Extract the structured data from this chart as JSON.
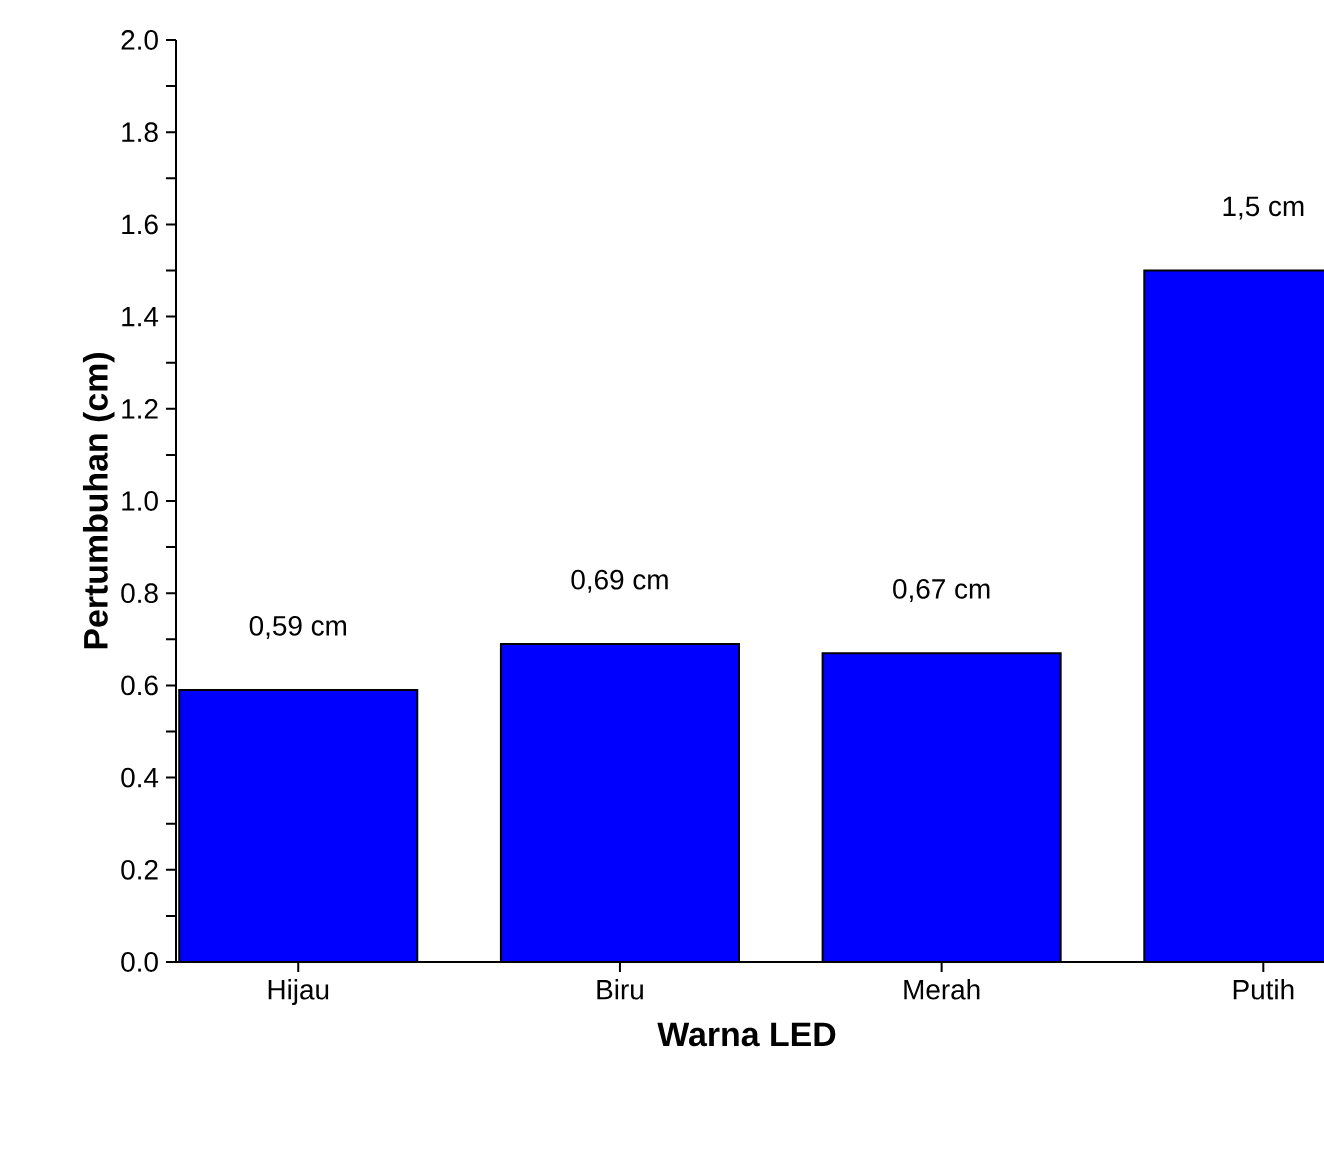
{
  "chart_data": {
    "type": "bar",
    "xlabel": "Warna LED",
    "ylabel": "Pertumbuhan (cm)",
    "categories": [
      "Hijau",
      "Biru",
      "Merah",
      "Putih"
    ],
    "values": [
      0.59,
      0.69,
      0.67,
      1.5
    ],
    "value_labels": [
      "0,59 cm",
      "0,69 cm",
      "0,67 cm",
      "1,5 cm"
    ],
    "color": "#0000ff",
    "ylim": [
      0,
      2.0
    ],
    "yticks": [
      {
        "value": 0,
        "label": "0.0"
      },
      {
        "value": 0.1,
        "label": null
      },
      {
        "value": 0.2,
        "label": "0.2"
      },
      {
        "value": 0.3,
        "label": null
      },
      {
        "value": 0.4,
        "label": "0.4"
      },
      {
        "value": 0.5,
        "label": null
      },
      {
        "value": 0.6,
        "label": "0.6"
      },
      {
        "value": 0.7,
        "label": null
      },
      {
        "value": 0.8,
        "label": "0.8"
      },
      {
        "value": 0.9,
        "label": null
      },
      {
        "value": 1.0,
        "label": "1.0"
      },
      {
        "value": 1.1,
        "label": null
      },
      {
        "value": 1.2,
        "label": "1.2"
      },
      {
        "value": 1.3,
        "label": null
      },
      {
        "value": 1.4,
        "label": "1.4"
      },
      {
        "value": 1.5,
        "label": null
      },
      {
        "value": 1.6,
        "label": "1.6"
      },
      {
        "value": 1.7,
        "label": null
      },
      {
        "value": 1.8,
        "label": "1.8"
      },
      {
        "value": 1.9,
        "label": null
      },
      {
        "value": 2.0,
        "label": "2.0"
      }
    ],
    "grid": false
  }
}
